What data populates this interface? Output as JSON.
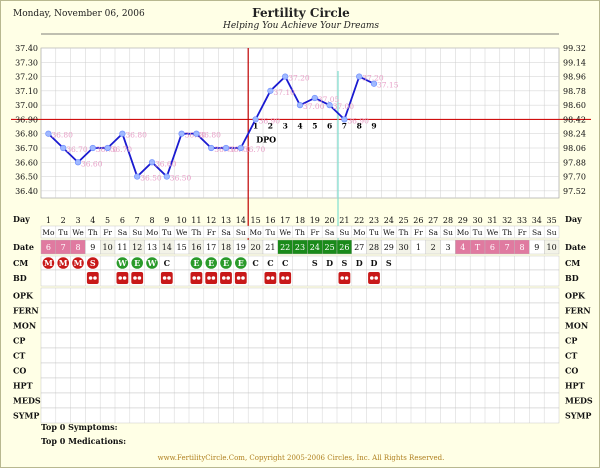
{
  "header": {
    "date": "Monday, November 06, 2006",
    "title": "Fertility Circle",
    "subtitle": "Helping You Achieve Your Dreams"
  },
  "chart_data": {
    "type": "line",
    "y_left_ticks": [
      "37.40",
      "37.30",
      "37.20",
      "37.10",
      "37.00",
      "36.90",
      "36.80",
      "36.70",
      "36.60",
      "36.50",
      "36.40"
    ],
    "y_right_ticks": [
      "99.32",
      "99.14",
      "98.96",
      "98.78",
      "98.60",
      "98.42",
      "98.24",
      "98.06",
      "97.88",
      "97.70",
      "97.52"
    ],
    "ylim": [
      36.35,
      37.4
    ],
    "days": [
      "1",
      "2",
      "3",
      "4",
      "5",
      "6",
      "7",
      "8",
      "9",
      "10",
      "11",
      "12",
      "13",
      "14",
      "15",
      "16",
      "17",
      "18",
      "19",
      "20",
      "21",
      "22",
      "23",
      "24",
      "25",
      "26",
      "27",
      "28",
      "29",
      "30",
      "31",
      "32",
      "33",
      "34",
      "35"
    ],
    "weekdays": [
      "Mo",
      "Tu",
      "We",
      "Th",
      "Fr",
      "Sa",
      "Su",
      "Mo",
      "Tu",
      "We",
      "Th",
      "Fr",
      "Sa",
      "Su",
      "Mo",
      "Tu",
      "We",
      "Th",
      "Fr",
      "Sa",
      "Su",
      "Mo",
      "Tu",
      "We",
      "Th",
      "Fr",
      "Sa",
      "Su",
      "Mo",
      "Tu",
      "We",
      "Th",
      "Fr",
      "Sa",
      "Su"
    ],
    "dates": [
      "6",
      "7",
      "8",
      "9",
      "10",
      "11",
      "12",
      "13",
      "14",
      "15",
      "16",
      "17",
      "18",
      "19",
      "20",
      "21",
      "22",
      "23",
      "24",
      "25",
      "26",
      "27",
      "28",
      "29",
      "30",
      "1",
      "2",
      "3",
      "4",
      "T",
      "6",
      "7",
      "8",
      "9",
      "10"
    ],
    "date_pink": [
      1,
      2,
      3,
      29,
      30,
      31,
      32,
      33
    ],
    "date_green": [
      17,
      18,
      19,
      20,
      21
    ],
    "series": [
      {
        "x": [
          1,
          2,
          3,
          4,
          5,
          6,
          7,
          8,
          9,
          10,
          11,
          12,
          13,
          14,
          15,
          16,
          17,
          18,
          19,
          20,
          21,
          22,
          23
        ],
        "values": [
          36.8,
          36.7,
          36.6,
          36.7,
          36.7,
          36.8,
          36.5,
          36.6,
          36.5,
          36.8,
          36.8,
          36.7,
          36.7,
          36.7,
          36.9,
          37.1,
          37.2,
          37.0,
          37.05,
          37.0,
          36.9,
          37.2,
          37.15
        ]
      }
    ],
    "point_labels": [
      "36.80",
      "36.70",
      "36.60",
      "36.70",
      "36.70",
      "36.80",
      "36.50",
      "36.60",
      "36.50",
      "36.80",
      "36.80",
      "36.70",
      "36.70",
      "36.70",
      "36.90",
      "37.10",
      "37.20",
      "37.00",
      "37.05",
      "37.00",
      "36.90",
      "37.20",
      "37.15"
    ],
    "coverline": 36.9,
    "ovulation_day": 14,
    "second_marker_day": 21,
    "dpo_numbers": [
      "1",
      "2",
      "3",
      "4",
      "5",
      "6",
      "7",
      "8",
      "9"
    ],
    "dpo_label": "DPO",
    "row_labels": {
      "day": "Day",
      "date": "Date"
    },
    "cm": {
      "label": "CM",
      "items": [
        {
          "day": 1,
          "text": "M",
          "style": "red"
        },
        {
          "day": 2,
          "text": "M",
          "style": "red"
        },
        {
          "day": 3,
          "text": "M",
          "style": "red"
        },
        {
          "day": 4,
          "text": "S",
          "style": "red"
        },
        {
          "day": 6,
          "text": "W",
          "style": "green"
        },
        {
          "day": 7,
          "text": "E",
          "style": "green"
        },
        {
          "day": 8,
          "text": "W",
          "style": "green"
        },
        {
          "day": 9,
          "text": "C",
          "style": "plain"
        },
        {
          "day": 11,
          "text": "E",
          "style": "green"
        },
        {
          "day": 12,
          "text": "E",
          "style": "green"
        },
        {
          "day": 13,
          "text": "E",
          "style": "green"
        },
        {
          "day": 14,
          "text": "E",
          "style": "green"
        },
        {
          "day": 15,
          "text": "C",
          "style": "plain"
        },
        {
          "day": 16,
          "text": "C",
          "style": "plain"
        },
        {
          "day": 17,
          "text": "C",
          "style": "plain"
        },
        {
          "day": 19,
          "text": "S",
          "style": "plain"
        },
        {
          "day": 20,
          "text": "D",
          "style": "plain"
        },
        {
          "day": 21,
          "text": "S",
          "style": "plain"
        },
        {
          "day": 22,
          "text": "D",
          "style": "plain"
        },
        {
          "day": 23,
          "text": "D",
          "style": "plain"
        },
        {
          "day": 24,
          "text": "S",
          "style": "plain"
        }
      ]
    },
    "bd": {
      "label": "BD",
      "days": [
        4,
        6,
        7,
        9,
        11,
        12,
        13,
        14,
        16,
        17,
        21,
        23
      ]
    },
    "other_rows": [
      "OPK",
      "FERN",
      "MON",
      "CP",
      "CT",
      "CO",
      "HPT",
      "MEDS",
      "SYMP"
    ],
    "top_symptoms": "Top 0 Symptoms:",
    "top_medications": "Top 0 Medications:",
    "footer": "www.FertilityCircle.Com, Copyright 2005-2006 Circles, Inc. All Rights Reserved."
  }
}
